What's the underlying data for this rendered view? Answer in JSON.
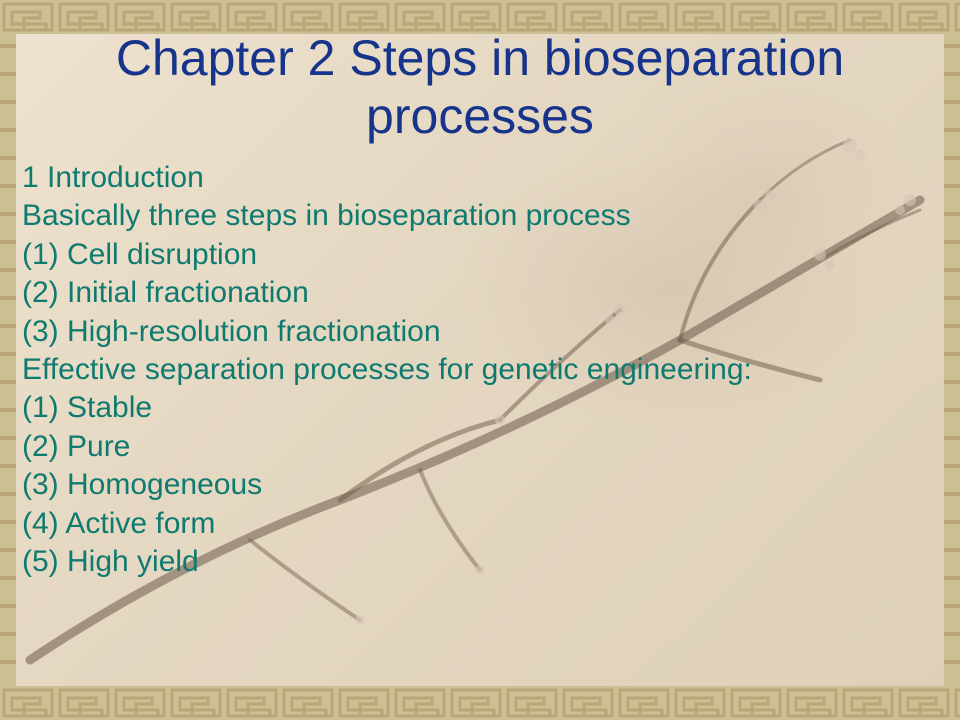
{
  "slide": {
    "title": "Chapter 2  Steps in bioseparation processes",
    "lines": [
      "1  Introduction",
      "Basically three steps in bioseparation process",
      "(1) Cell disruption",
      "(2) Initial fractionation",
      "(3) High-resolution fractionation",
      "Effective separation processes for genetic engineering:",
      "(1) Stable",
      "(2) Pure",
      "(3) Homogeneous",
      "(4) Active form",
      "(5) High yield"
    ]
  },
  "style": {
    "title_color": "#16348b",
    "title_fontsize": 50,
    "body_color": "#0f7a6f",
    "body_fontsize": 30,
    "background_base": "#e8dcc8",
    "border_dark": "#b8a678",
    "border_light": "#cdbf94",
    "branch_color": "#6b5a48",
    "blossom_color": "#d8c4b8"
  }
}
